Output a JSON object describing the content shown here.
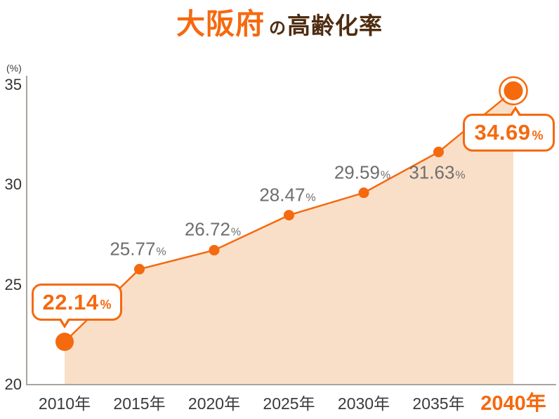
{
  "title": {
    "highlight": "大阪府",
    "particle": "の",
    "rest": "高齢化率"
  },
  "y_axis": {
    "unit_label": "(%)"
  },
  "chart_data": {
    "type": "area",
    "title": "大阪府の高齢化率",
    "categories": [
      "2010年",
      "2015年",
      "2020年",
      "2025年",
      "2030年",
      "2035年",
      "2040年"
    ],
    "values": [
      22.14,
      25.77,
      26.72,
      28.47,
      29.59,
      31.63,
      34.69
    ],
    "ylabel": "(%)",
    "ylim": [
      20,
      35
    ],
    "yticks": [
      20,
      25,
      30,
      35
    ],
    "grid": false,
    "legend": "none",
    "point_label_unit": "%",
    "colors": {
      "line": "#f5690f",
      "fill": "#fadfc8",
      "point_label": "#6e6e6e",
      "axis": "#aaa49f",
      "tick_text": "#333333",
      "x_highlight": "#f5690f",
      "title_highlight": "#f5690f",
      "title_dark": "#4e2c10"
    },
    "callouts": [
      {
        "category": "2010年",
        "value": "22.14",
        "unit": "%"
      },
      {
        "category": "2040年",
        "value": "34.69",
        "unit": "%"
      }
    ]
  }
}
